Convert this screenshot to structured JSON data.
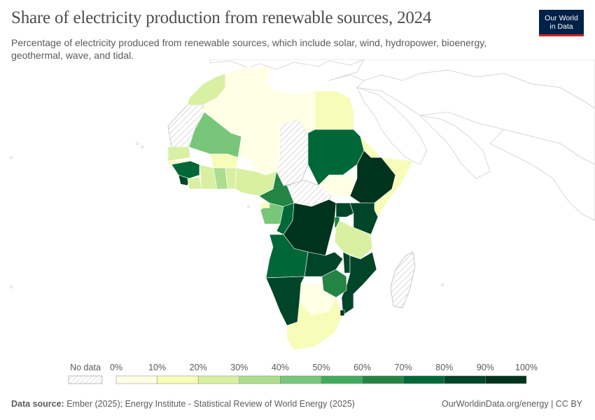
{
  "header": {
    "title": "Share of electricity production from renewable sources, 2024",
    "subtitle": "Percentage of electricity produced from renewable sources, which include solar, wind, hydropower, bioenergy, geothermal, wave, and tidal."
  },
  "logo": {
    "line1": "Our World",
    "line2": "in Data",
    "bg_color": "#002147",
    "accent_color": "#ce261e"
  },
  "legend": {
    "no_data_label": "No data",
    "ticks": [
      "0%",
      "10%",
      "20%",
      "30%",
      "40%",
      "50%",
      "60%",
      "70%",
      "80%",
      "90%",
      "100%"
    ],
    "colors": [
      "#ffffe5",
      "#f7fcb9",
      "#d9f0a3",
      "#addd8e",
      "#78c679",
      "#41ab5d",
      "#238443",
      "#006837",
      "#004529",
      "#00331d"
    ]
  },
  "countries": [
    {
      "name": "Morocco",
      "share_bin": 2
    },
    {
      "name": "Western Sahara",
      "share_bin": null
    },
    {
      "name": "Algeria",
      "share_bin": 0
    },
    {
      "name": "Tunisia",
      "share_bin": 0
    },
    {
      "name": "Libya",
      "share_bin": 0
    },
    {
      "name": "Egypt",
      "share_bin": 1
    },
    {
      "name": "Mauritania",
      "share_bin": 4
    },
    {
      "name": "Mali",
      "share_bin": 0
    },
    {
      "name": "Niger",
      "share_bin": 0
    },
    {
      "name": "Chad",
      "share_bin": null
    },
    {
      "name": "Sudan",
      "share_bin": 7
    },
    {
      "name": "Eritrea",
      "share_bin": 1
    },
    {
      "name": "Senegal",
      "share_bin": 2
    },
    {
      "name": "Guinea",
      "share_bin": 7
    },
    {
      "name": "Sierra Leone",
      "share_bin": 8
    },
    {
      "name": "Burkina Faso",
      "share_bin": 1
    },
    {
      "name": "Ivory Coast",
      "share_bin": 2
    },
    {
      "name": "Ghana",
      "share_bin": 3
    },
    {
      "name": "Nigeria",
      "share_bin": 2
    },
    {
      "name": "Cameroon",
      "share_bin": 6
    },
    {
      "name": "Central African Republic",
      "share_bin": null
    },
    {
      "name": "South Sudan",
      "share_bin": 0
    },
    {
      "name": "Ethiopia",
      "share_bin": 9
    },
    {
      "name": "Somalia",
      "share_bin": 1
    },
    {
      "name": "Gabon",
      "share_bin": 4
    },
    {
      "name": "Congo",
      "share_bin": 7
    },
    {
      "name": "DR Congo",
      "share_bin": 9
    },
    {
      "name": "Uganda",
      "share_bin": 8
    },
    {
      "name": "Kenya",
      "share_bin": 8
    },
    {
      "name": "Tanzania",
      "share_bin": 2
    },
    {
      "name": "Angola",
      "share_bin": 7
    },
    {
      "name": "Zambia",
      "share_bin": 8
    },
    {
      "name": "Malawi",
      "share_bin": 8
    },
    {
      "name": "Mozambique",
      "share_bin": 8
    },
    {
      "name": "Zimbabwe",
      "share_bin": 6
    },
    {
      "name": "Namibia",
      "share_bin": 8
    },
    {
      "name": "Botswana",
      "share_bin": 0
    },
    {
      "name": "South Africa",
      "share_bin": 1
    },
    {
      "name": "Madagascar",
      "share_bin": null
    }
  ],
  "footer": {
    "source_label": "Data source:",
    "source_text": "Ember (2025); Energy Institute - Statistical Review of World Energy (2025)",
    "link_text": "OurWorldinData.org/energy",
    "license": "CC BY"
  }
}
